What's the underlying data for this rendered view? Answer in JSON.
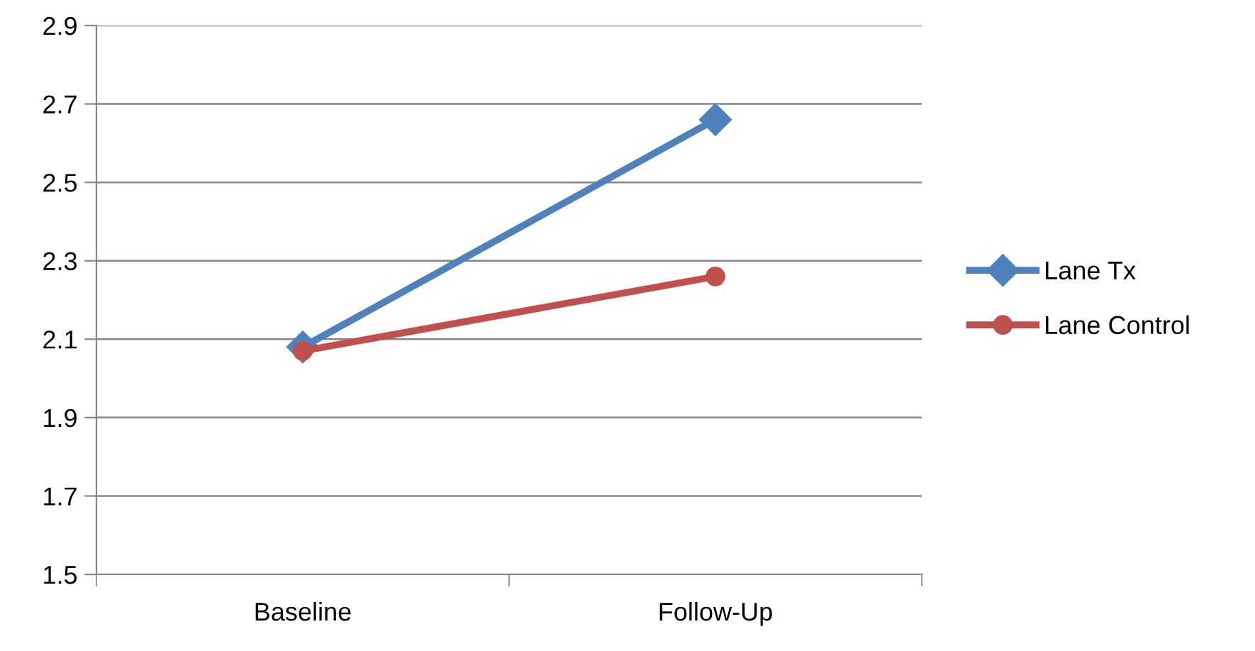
{
  "chart_data": {
    "type": "line",
    "categories": [
      "Baseline",
      "Follow-Up"
    ],
    "series": [
      {
        "name": "Lane Tx",
        "color": "#4f81bd",
        "values": [
          2.08,
          2.66
        ],
        "marker": "diamond"
      },
      {
        "name": "Lane Control",
        "color": "#c0504d",
        "values": [
          2.07,
          2.26
        ],
        "marker": "circle"
      }
    ],
    "ylim": [
      1.5,
      2.9
    ],
    "yticks": [
      {
        "value": 1.5,
        "label": "1.5"
      },
      {
        "value": 1.7,
        "label": "1.7"
      },
      {
        "value": 1.9,
        "label": "1.9"
      },
      {
        "value": 2.1,
        "label": "2.1"
      },
      {
        "value": 2.3,
        "label": "2.3"
      },
      {
        "value": 2.5,
        "label": "2.5"
      },
      {
        "value": 2.7,
        "label": "2.7"
      },
      {
        "value": 2.9,
        "label": "2.9"
      }
    ],
    "grid": "y",
    "legend": "right",
    "line_style": "solid"
  }
}
